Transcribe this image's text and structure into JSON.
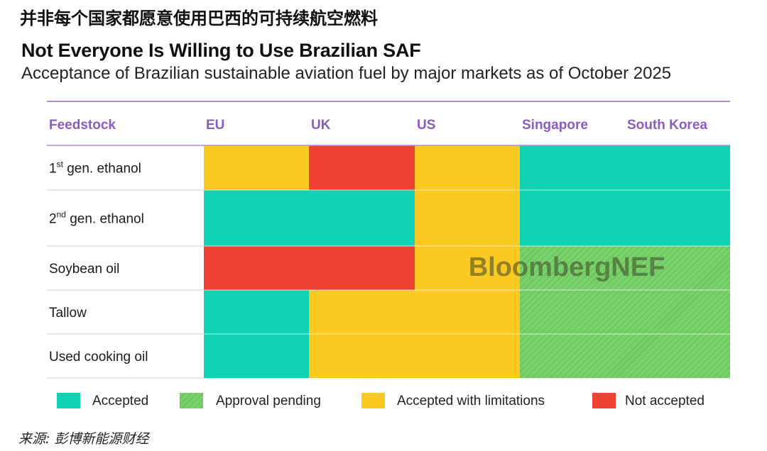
{
  "header": {
    "cn_title": "并非每个国家都愿意使用巴西的可持续航空燃料",
    "title": "Not Everyone Is Willing to Use Brazilian SAF",
    "subtitle": "Acceptance of Brazilian sustainable aviation fuel by major markets as of October 2025"
  },
  "chart_data": {
    "type": "table",
    "row_header": "Feedstock",
    "columns": [
      "EU",
      "UK",
      "US",
      "Singapore",
      "South Korea"
    ],
    "rows": [
      {
        "label": "1",
        "sup": "st",
        "rest": " gen. ethanol",
        "status": [
          "limited",
          "not",
          "limited",
          "accepted",
          "accepted"
        ]
      },
      {
        "label": "2",
        "sup": "nd",
        "rest": " gen. ethanol",
        "status": [
          "accepted",
          "accepted",
          "limited",
          "accepted",
          "accepted"
        ]
      },
      {
        "label": "Soybean oil",
        "sup": "",
        "rest": "",
        "status": [
          "not",
          "not",
          "limited",
          "pending",
          "pending"
        ]
      },
      {
        "label": "Tallow",
        "sup": "",
        "rest": "",
        "status": [
          "accepted",
          "limited",
          "limited",
          "pending",
          "pending"
        ]
      },
      {
        "label": "Used cooking oil",
        "sup": "",
        "rest": "",
        "status": [
          "accepted",
          "limited",
          "limited",
          "pending",
          "pending"
        ]
      }
    ],
    "legend": [
      {
        "key": "accepted",
        "label": "Accepted"
      },
      {
        "key": "pending",
        "label": "Approval pending"
      },
      {
        "key": "limited",
        "label": "Accepted with limitations"
      },
      {
        "key": "not",
        "label": "Not accepted"
      }
    ],
    "colors": {
      "accepted": "#10d2b4",
      "pending": "#7ad06a",
      "limited": "#fcc822",
      "not": "#ef4234",
      "header_text": "#8a5cc2",
      "rule": "#b08cd8"
    },
    "watermark": "BloombergNEF"
  },
  "footer": {
    "source": "来源: 彭博新能源财经"
  }
}
